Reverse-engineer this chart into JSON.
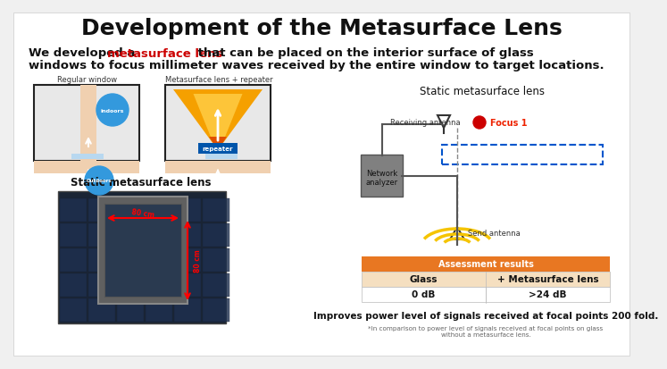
{
  "title": "Development of the Metasurface Lens",
  "bg_color": "#f0f0f0",
  "title_fontsize": 18,
  "subtitle_fontsize": 9.5,
  "label_regular": "Regular window",
  "label_meta": "Metasurface lens + repeater",
  "label_static_left": "Static metasurface lens",
  "label_static_right": "Static metasurface lens",
  "label_network": "Network\nanalyzer",
  "label_receiving": "Receiving antenna",
  "label_send": "Send antenna",
  "label_focus": "Focus 1",
  "table_header": "Assessment results",
  "table_header_bg": "#e87722",
  "table_row1": [
    "Glass",
    "+ Metasurface lens"
  ],
  "table_row2": [
    "0 dB",
    ">24 dB"
  ],
  "table_row1_bg": "#f5dfc0",
  "table_row2_bg": "#ffffff",
  "improve_text": "Improves power level of signals received at focal points 200 fold.",
  "footnote": "*In comparison to power level of signals received at focal points on glass\nwithout a metasurface lens.",
  "orange_color": "#e87722",
  "yellow_color": "#f5c400",
  "blue_color": "#0055aa",
  "light_peach": "#f0d0b0",
  "light_blue_strip": "#b8d8f0",
  "gold_cone": "#f5a000",
  "inner_cone": "#ffcc44"
}
